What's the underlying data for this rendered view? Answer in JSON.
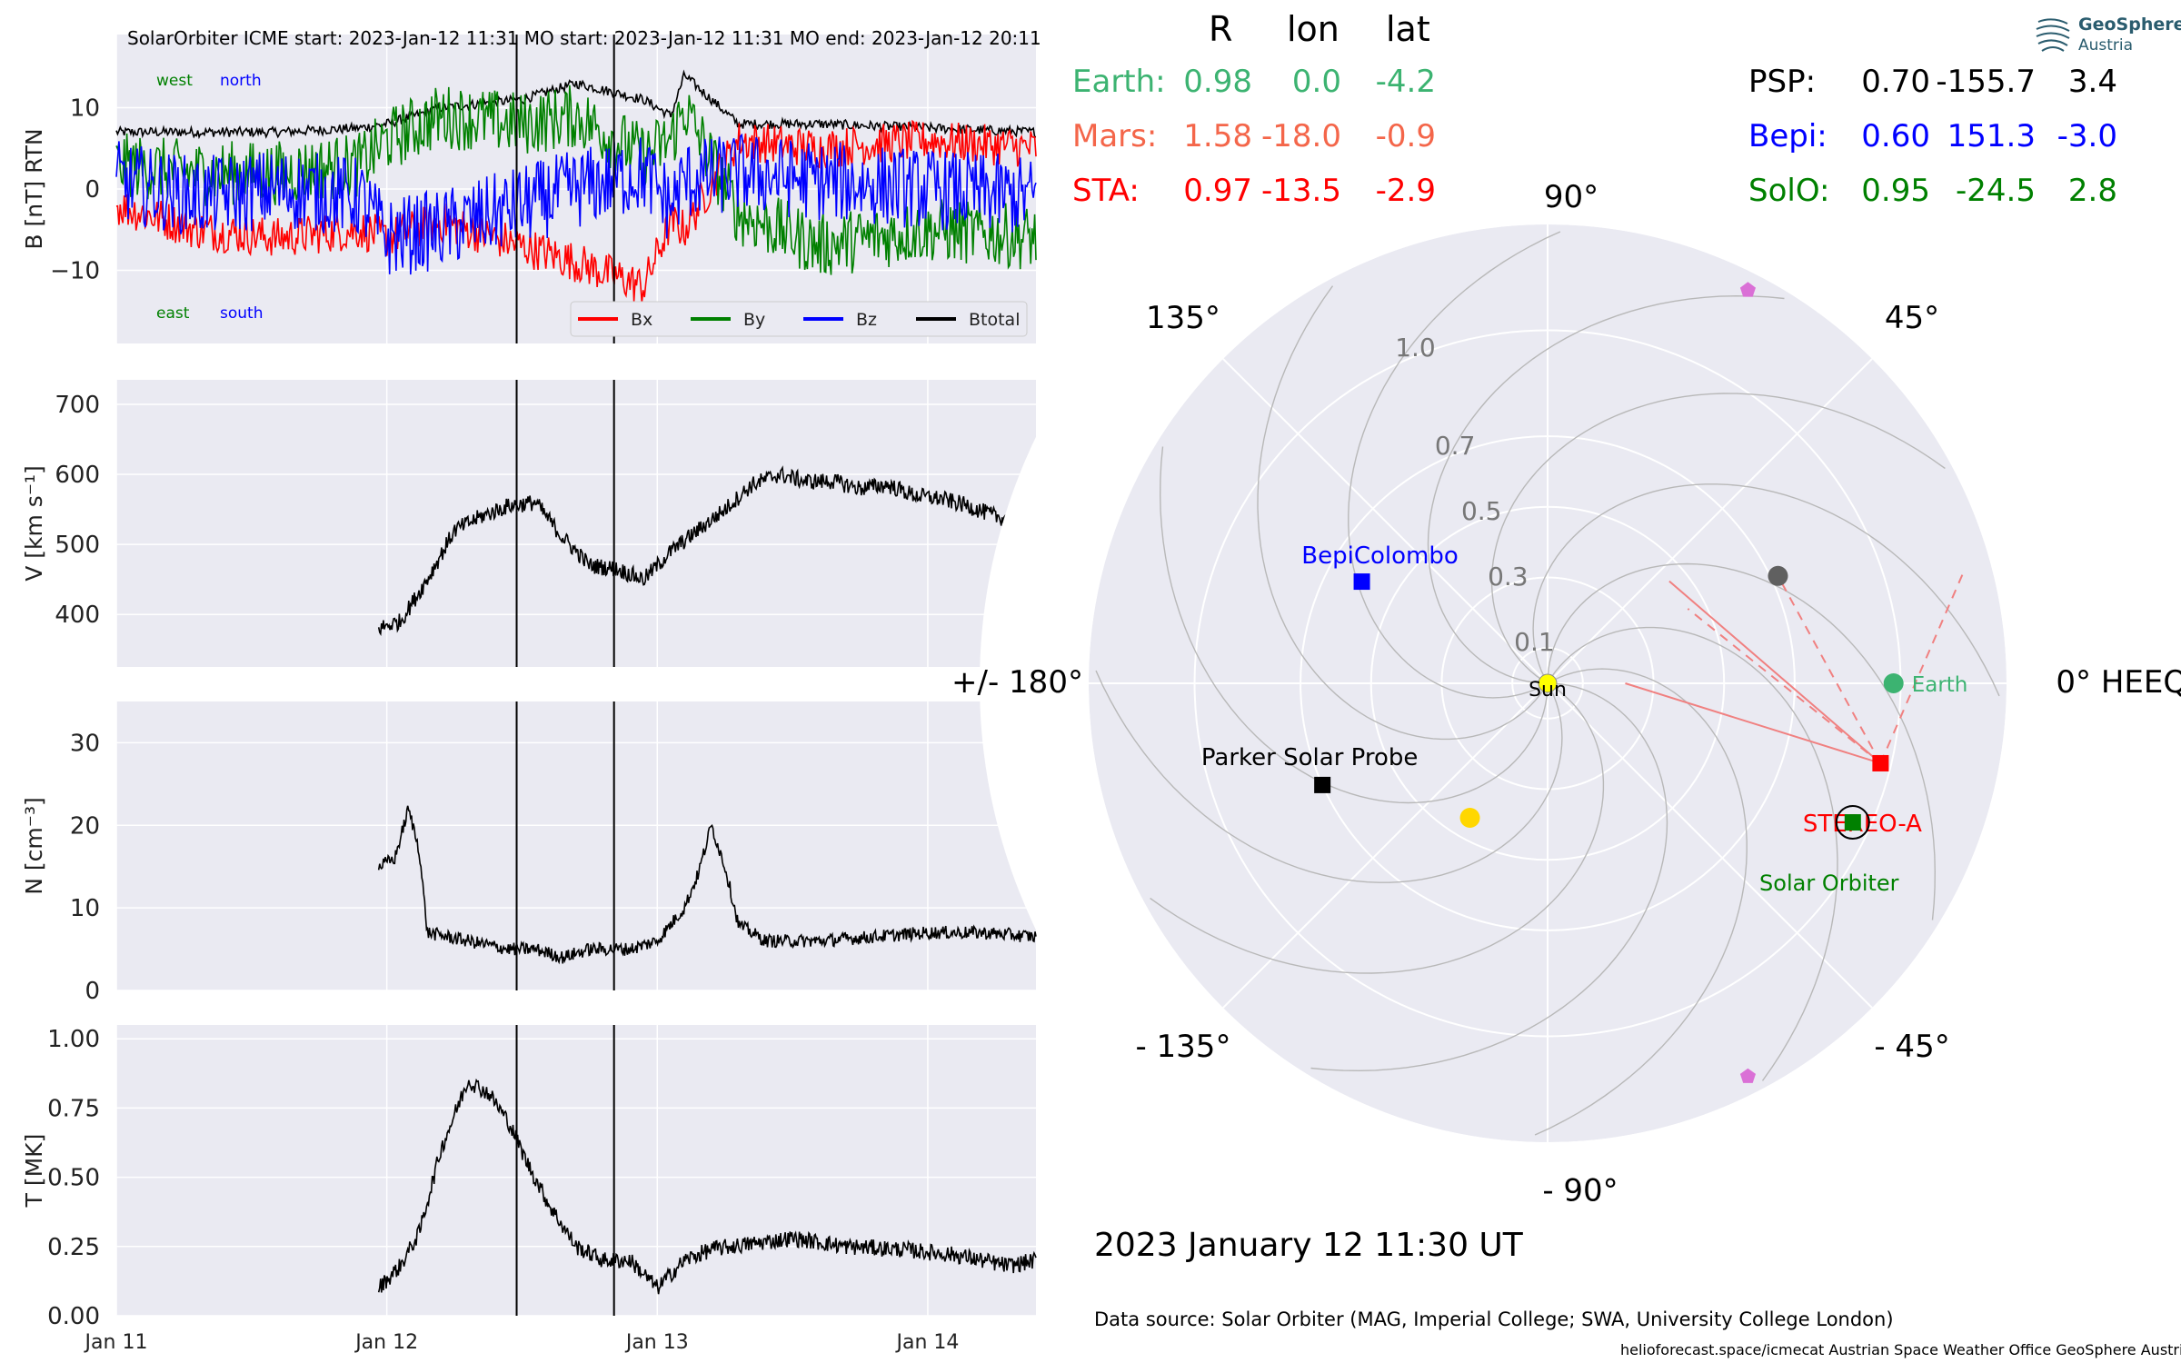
{
  "header": {
    "title": "SolarOrbiter    ICME start: 2023-Jan-12 11:31    MO start: 2023-Jan-12 11:31    MO end: 2023-Jan-12 20:11"
  },
  "colors": {
    "panel_bg": "#eaeaf2",
    "bx": "#ff0000",
    "by": "#008000",
    "bz": "#0000ff",
    "btotal": "#000000",
    "earth": "#3cb371",
    "mars": "#f4664a",
    "sta": "#ff0000",
    "psp": "#000000",
    "bepi": "#0000ff",
    "solo": "#008000",
    "cme_line": "#f08080",
    "planet_pink": "#da70d6",
    "venus_gray": "#606060",
    "mercury_gold": "#ffd700"
  },
  "chart_data": [
    {
      "type": "line",
      "panel": "magnetic-field",
      "ylabel": "B [nT] RTN",
      "ylim": [
        -19,
        19
      ],
      "yticks": [
        "10",
        "0",
        "−10"
      ],
      "xlim": [
        0,
        3.4
      ],
      "grid": true,
      "corner_labels": {
        "top_left_green": "west",
        "top_left_blue": "north",
        "bottom_left_green": "east",
        "bottom_left_blue": "south"
      },
      "legend": {
        "placement": "bottom-right",
        "entries": [
          "Bx",
          "By",
          "Bz",
          "Btotal"
        ]
      },
      "series": [
        {
          "name": "Btotal",
          "x": [
            0,
            0.3,
            0.6,
            0.9,
            1.0,
            1.2,
            1.5,
            1.7,
            1.95,
            2.05,
            2.1,
            2.3,
            2.6,
            3.0,
            3.4
          ],
          "values": [
            7,
            7,
            7,
            7.5,
            8,
            10,
            11,
            13,
            11,
            9,
            14,
            8,
            8,
            7.5,
            7
          ]
        },
        {
          "name": "Bx",
          "x": [
            0,
            0.3,
            0.6,
            0.9,
            1.0,
            1.2,
            1.5,
            1.7,
            1.95,
            2.05,
            2.1,
            2.3,
            2.6,
            3.0,
            3.4
          ],
          "values": [
            -2,
            -5,
            -6,
            -5,
            -6,
            -4,
            -7,
            -9,
            -12,
            -4,
            -5,
            6,
            5,
            6,
            5
          ]
        },
        {
          "name": "By",
          "x": [
            0,
            0.3,
            0.6,
            0.9,
            1.0,
            1.2,
            1.5,
            1.7,
            1.95,
            2.05,
            2.1,
            2.3,
            2.6,
            3.0,
            3.4
          ],
          "values": [
            3,
            2,
            2,
            3,
            6,
            9,
            8,
            9,
            4,
            6,
            10,
            -3,
            -7,
            -5,
            -6
          ]
        },
        {
          "name": "Bz",
          "x": [
            0,
            0.3,
            0.6,
            0.9,
            1.0,
            1.2,
            1.5,
            1.7,
            1.95,
            2.05,
            2.1,
            2.3,
            2.6,
            3.0,
            3.4
          ],
          "values": [
            1,
            -1,
            0,
            -1,
            -6,
            -5,
            -2,
            0,
            2,
            -2,
            1,
            2,
            1,
            0,
            -1
          ]
        }
      ],
      "vlines_x": [
        1.48,
        1.84
      ]
    },
    {
      "type": "line",
      "panel": "velocity",
      "ylabel": "V [km s⁻¹]",
      "ylim": [
        325,
        735
      ],
      "yticks": [
        "700",
        "600",
        "500",
        "400"
      ],
      "xlim": [
        0,
        3.4
      ],
      "grid": true,
      "series": [
        {
          "name": "V",
          "x": [
            0.97,
            1.05,
            1.15,
            1.25,
            1.35,
            1.45,
            1.55,
            1.65,
            1.75,
            1.85,
            1.95,
            2.05,
            2.15,
            2.25,
            2.35,
            2.45,
            2.55,
            2.65,
            2.75,
            2.85,
            2.95,
            3.05,
            3.15,
            3.25,
            3.4
          ],
          "values": [
            380,
            390,
            450,
            520,
            540,
            555,
            560,
            510,
            470,
            465,
            450,
            490,
            520,
            550,
            585,
            600,
            590,
            590,
            580,
            585,
            570,
            565,
            555,
            540,
            530
          ]
        }
      ],
      "vlines_x": [
        1.48,
        1.84
      ]
    },
    {
      "type": "line",
      "panel": "density",
      "ylabel": "N [cm⁻³]",
      "ylim": [
        0,
        35
      ],
      "yticks": [
        "30",
        "20",
        "10",
        "0"
      ],
      "xlim": [
        0,
        3.4
      ],
      "grid": true,
      "series": [
        {
          "name": "N",
          "x": [
            0.97,
            1.03,
            1.08,
            1.12,
            1.15,
            1.3,
            1.45,
            1.55,
            1.65,
            1.75,
            1.9,
            2.0,
            2.1,
            2.15,
            2.2,
            2.25,
            2.3,
            2.4,
            2.6,
            2.8,
            3.0,
            3.2,
            3.4
          ],
          "values": [
            15,
            16,
            22,
            17,
            7,
            6,
            5,
            5,
            4,
            5,
            5,
            6,
            10,
            14,
            20,
            15,
            8,
            6,
            6,
            6.5,
            7,
            7,
            6.5
          ]
        }
      ],
      "vlines_x": [
        1.48,
        1.84
      ]
    },
    {
      "type": "line",
      "panel": "temperature",
      "ylabel": "T [MK]",
      "ylim": [
        0,
        1.05
      ],
      "yticks": [
        "1.00",
        "0.75",
        "0.50",
        "0.25",
        "0.00"
      ],
      "xlim": [
        0,
        3.4
      ],
      "xticks": [
        {
          "x": 0,
          "label": "Jan 11"
        },
        {
          "x": 1,
          "label": "Jan 12"
        },
        {
          "x": 2,
          "label": "Jan 13"
        },
        {
          "x": 3,
          "label": "Jan 14"
        }
      ],
      "grid": true,
      "series": [
        {
          "name": "T",
          "x": [
            0.97,
            1.05,
            1.12,
            1.2,
            1.3,
            1.38,
            1.45,
            1.52,
            1.6,
            1.7,
            1.8,
            1.9,
            2.0,
            2.1,
            2.2,
            2.35,
            2.5,
            2.7,
            2.9,
            3.1,
            3.3,
            3.4
          ],
          "values": [
            0.1,
            0.18,
            0.3,
            0.6,
            0.85,
            0.8,
            0.7,
            0.55,
            0.4,
            0.25,
            0.2,
            0.2,
            0.1,
            0.2,
            0.24,
            0.26,
            0.28,
            0.25,
            0.24,
            0.22,
            0.18,
            0.2
          ]
        }
      ],
      "vlines_x": [
        1.48,
        1.84
      ]
    },
    {
      "type": "scatter",
      "panel": "polar-positions",
      "projection": "polar",
      "r_ticks": [
        "0.1",
        "0.3",
        "0.5",
        "0.7",
        "1.0"
      ],
      "r_tick_values": [
        0.1,
        0.3,
        0.5,
        0.7,
        1.0
      ],
      "angle_labels": {
        "0": "0° HEEQ",
        "45": "45°",
        "90": "90°",
        "135": "135°",
        "180": "+/- 180°",
        "-135": "- 135°",
        "-90": "- 90°",
        "-45": "- 45°"
      },
      "bodies": [
        {
          "name": "Sun",
          "label": "Sun",
          "r": 0,
          "lon": 0,
          "marker": "circle",
          "color": "#ffff00"
        },
        {
          "name": "Earth",
          "label": "Earth",
          "r": 0.98,
          "lon": 0.0,
          "marker": "circle",
          "color": "#3cb371"
        },
        {
          "name": "STEREO-A",
          "label": "STEREO-A",
          "r": 0.97,
          "lon": -13.5,
          "marker": "square",
          "color": "#ff0000"
        },
        {
          "name": "Solar Orbiter",
          "label": "Solar Orbiter",
          "r": 0.95,
          "lon": -24.5,
          "marker": "square",
          "color": "#008000"
        },
        {
          "name": "BepiColombo",
          "label": "BepiColombo",
          "r": 0.6,
          "lon": 151.3,
          "marker": "square",
          "color": "#0000ff"
        },
        {
          "name": "Parker Solar Probe",
          "label": "Parker Solar Probe",
          "r": 0.7,
          "lon": -155.7,
          "marker": "square",
          "color": "#000000"
        },
        {
          "name": "Venus",
          "label": "",
          "r": 0.72,
          "lon": 25,
          "marker": "circle",
          "color": "#606060"
        },
        {
          "name": "Mercury",
          "label": "",
          "r": 0.44,
          "lon": -120,
          "marker": "circle",
          "color": "#ffd700"
        },
        {
          "name": "Planet-A",
          "label": "",
          "r": 1.25,
          "lon": 63,
          "marker": "pentagon",
          "color": "#da70d6"
        },
        {
          "name": "Planet-B",
          "label": "",
          "r": 1.25,
          "lon": -63,
          "marker": "pentagon",
          "color": "#da70d6"
        }
      ]
    }
  ],
  "table_header": {
    "r": "R",
    "lon": "lon",
    "lat": "lat"
  },
  "table_left": [
    {
      "name": "Earth:",
      "r": "0.98",
      "lon": "0.0",
      "lat": "-4.2",
      "color": "#3cb371"
    },
    {
      "name": "Mars:",
      "r": "1.58",
      "lon": "-18.0",
      "lat": "-0.9",
      "color": "#f4664a"
    },
    {
      "name": "STA:",
      "r": "0.97",
      "lon": "-13.5",
      "lat": "-2.9",
      "color": "#ff0000"
    }
  ],
  "table_right": [
    {
      "name": "PSP:",
      "r": "0.70",
      "lon": "-155.7",
      "lat": "3.4",
      "color": "#000000"
    },
    {
      "name": "Bepi:",
      "r": "0.60",
      "lon": "151.3",
      "lat": "-3.0",
      "color": "#0000ff"
    },
    {
      "name": "SolO:",
      "r": "0.95",
      "lon": "-24.5",
      "lat": "2.8",
      "color": "#008000"
    }
  ],
  "logo": {
    "name": "GeoSphere",
    "sub": "Austria"
  },
  "date_label": "2023 January 12  11:30 UT",
  "data_source": "Data source: Solar Orbiter (MAG, Imperial College; SWA, University College London)",
  "footer": "helioforecast.space/icmecat   Austrian Space Weather Office   GeoSphere Austria"
}
